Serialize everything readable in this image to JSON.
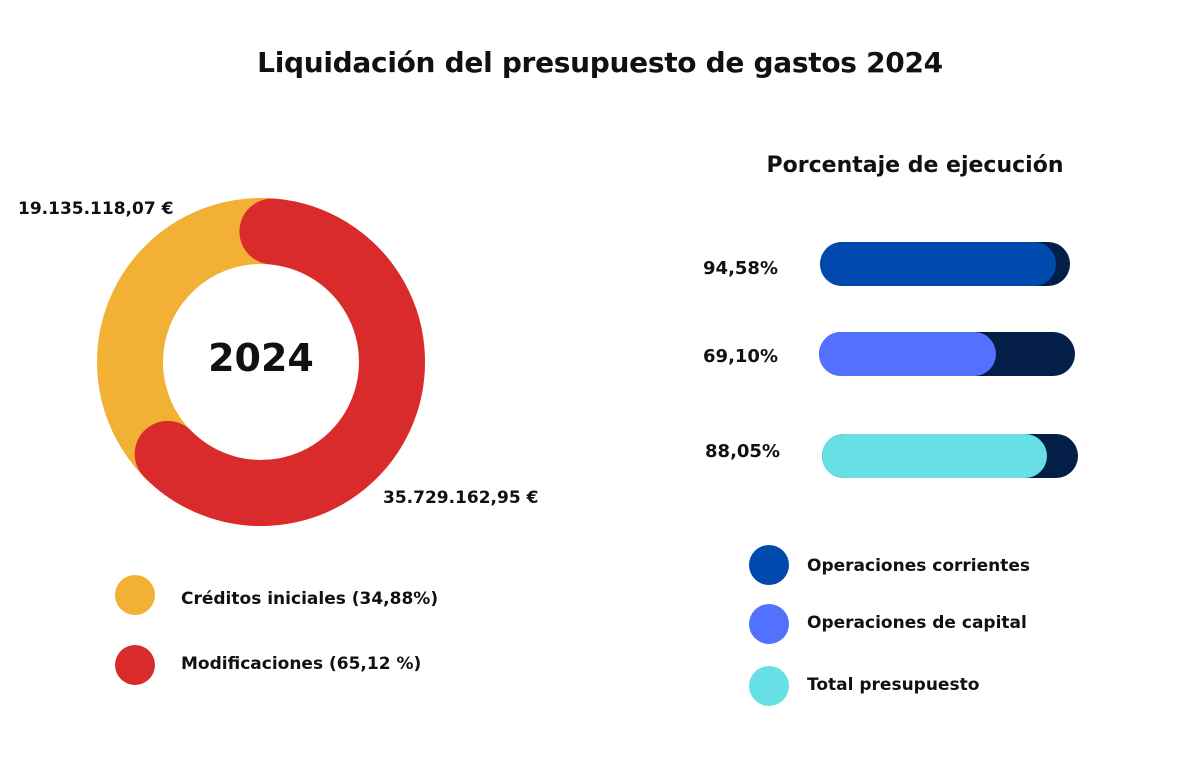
{
  "title": "Liquidación del presupuesto de gastos 2024",
  "chart_data": [
    {
      "type": "pie",
      "variant": "donut",
      "center_label": "2024",
      "slices": [
        {
          "name": "Créditos iniciales (34,88%)",
          "value": 19135118.07,
          "percent": 34.88,
          "label": "19.135.118,07 €",
          "color": "#F2B035"
        },
        {
          "name": "Modificaciones (65,12 %)",
          "value": 35729162.95,
          "percent": 65.12,
          "label": "35.729.162,95 €",
          "color": "#D92B2B"
        }
      ],
      "legend": "bottom"
    },
    {
      "type": "bar",
      "orientation": "horizontal",
      "title": "Porcentaje de ejecución",
      "xlim": [
        0,
        100
      ],
      "track_color": "#031F47",
      "series": [
        {
          "name": "Operaciones corrientes",
          "value": 94.58,
          "label": "94,58%",
          "color": "#004AAD"
        },
        {
          "name": "Operaciones de capital",
          "value": 69.1,
          "label": "69,10%",
          "color": "#5271FF"
        },
        {
          "name": "Total presupuesto",
          "value": 88.05,
          "label": "88,05%",
          "color": "#66E0E5"
        }
      ],
      "legend": "bottom"
    }
  ]
}
